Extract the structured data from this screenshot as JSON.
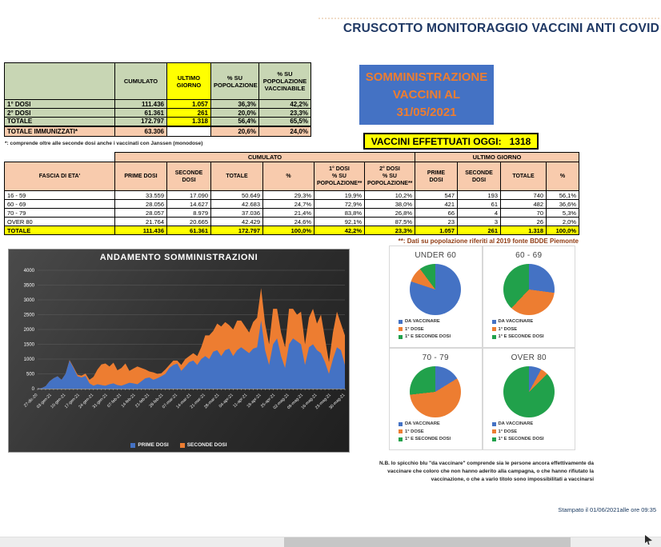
{
  "header": {
    "title": "CRUSCOTTO MONITORAGGIO VACCINI  ANTI COVID"
  },
  "info_box": {
    "line1": "SOMMINISTRAZIONE",
    "line2": "VACCINI AL",
    "line3": "31/05/2021"
  },
  "today_box": {
    "label": "VACCINI EFFETTUATI OGGI:",
    "value": "1318"
  },
  "colors": {
    "blue": "#4472C4",
    "orange": "#ED7D31",
    "green": "#21A14B",
    "table_green": "#C8D6B4",
    "salmon": "#F8CBAD",
    "yellow": "#FFFF00",
    "navy": "#1F3864"
  },
  "summary_table": {
    "col_headers": [
      "",
      "CUMULATO",
      "ULTIMO\nGIORNO",
      "% SU\nPOPOLAZIONE",
      "% SU\nPOPOLAZIONE\nVACCINABILE"
    ],
    "rows": [
      {
        "label": "1° DOSI",
        "cumulato": "111.436",
        "ultimo": "1.057",
        "pop": "36,3%",
        "vacc": "42,2%"
      },
      {
        "label": "2° DOSI",
        "cumulato": "61.361",
        "ultimo": "261",
        "pop": "20,0%",
        "vacc": "23,3%"
      },
      {
        "label": "TOTALE",
        "cumulato": "172.797",
        "ultimo": "1.318",
        "pop": "56,4%",
        "vacc": "65,5%"
      }
    ],
    "immunized_row": {
      "label": "TOTALE IMMUNIZZATI*",
      "cumulato": "63.306",
      "ultimo": "",
      "pop": "20,6%",
      "vacc": "24,0%"
    }
  },
  "age_table": {
    "corner_label": "FASCIA DI ETA'",
    "group_headers": [
      "CUMULATO",
      "ULTIMO GIORNO"
    ],
    "sub_headers": [
      "PRIME DOSI",
      "SECONDE DOSI",
      "TOTALE",
      "%",
      "1° DOSI\n% SU\nPOPOLAZIONE**",
      "2° DOSI\n% SU\nPOPOLAZIONE**",
      "PRIME\nDOSI",
      "SECONDE\nDOSI",
      "TOTALE",
      "%"
    ],
    "rows": [
      [
        "16 - 59",
        "33.559",
        "17.090",
        "50.649",
        "29,3%",
        "19,9%",
        "10,2%",
        "547",
        "193",
        "740",
        "56,1%"
      ],
      [
        "60 - 69",
        "28.056",
        "14.627",
        "42.683",
        "24,7%",
        "72,9%",
        "38,0%",
        "421",
        "61",
        "482",
        "36,6%"
      ],
      [
        "70 - 79",
        "28.057",
        "8.979",
        "37.036",
        "21,4%",
        "83,8%",
        "26,8%",
        "66",
        "4",
        "70",
        "5,3%"
      ],
      [
        "OVER 80",
        "21.764",
        "20.665",
        "42.429",
        "24,6%",
        "92,1%",
        "87,5%",
        "23",
        "3",
        "26",
        "2,0%"
      ]
    ],
    "total_row": [
      "TOTALE",
      "111.436",
      "61.361",
      "172.797",
      "100,0%",
      "42,2%",
      "23,3%",
      "1.057",
      "261",
      "1.318",
      "100,0%"
    ]
  },
  "chart_data": [
    {
      "type": "area",
      "title": "ANDAMENTO SOMMINISTRAZIONI",
      "stacked": true,
      "grid": true,
      "background": "dark",
      "legend_position": "bottom",
      "ylim": [
        0,
        4000
      ],
      "yticks": [
        0,
        500,
        1000,
        1500,
        2000,
        2500,
        3000,
        3500,
        4000
      ],
      "x_labels": [
        "27-dic-20",
        "03-gen-21",
        "10-gen-21",
        "17-gen-21",
        "24-gen-21",
        "31-gen-21",
        "07-feb-21",
        "14-feb-21",
        "21-feb-21",
        "28-feb-21",
        "07-mar-21",
        "14-mar-21",
        "21-mar-21",
        "28-mar-21",
        "04-apr-21",
        "11-apr-21",
        "18-apr-21",
        "25-apr-21",
        "02-mag-21",
        "09-mag-21",
        "16-mag-21",
        "23-mag-21",
        "30-mag-21"
      ],
      "series": [
        {
          "name": "PRIME DOSI",
          "color": "#4472C4",
          "values": [
            0,
            20,
            80,
            250,
            350,
            420,
            300,
            500,
            950,
            700,
            420,
            380,
            430,
            180,
            100,
            150,
            120,
            100,
            150,
            180,
            120,
            100,
            150,
            200,
            180,
            150,
            250,
            350,
            380,
            300,
            350,
            420,
            500,
            700,
            800,
            850,
            600,
            750,
            900,
            950,
            800,
            1000,
            1100,
            1000,
            1250,
            1300,
            1100,
            1300,
            1350,
            1100,
            1300,
            1400,
            1300,
            1200,
            1350,
            1400,
            2300,
            1300,
            800,
            1500,
            1700,
            1100,
            700,
            1500,
            1700,
            1600,
            1500,
            800,
            1400,
            1500,
            1300,
            1200,
            900,
            500,
            1000,
            1400,
            1300,
            800
          ]
        },
        {
          "name": "SECONDE DOSI",
          "color": "#ED7D31",
          "values": [
            0,
            0,
            0,
            0,
            0,
            0,
            0,
            0,
            20,
            30,
            50,
            60,
            80,
            120,
            300,
            500,
            700,
            750,
            600,
            700,
            500,
            600,
            700,
            400,
            500,
            600,
            450,
            300,
            200,
            250,
            150,
            100,
            150,
            100,
            150,
            100,
            200,
            250,
            200,
            250,
            300,
            400,
            700,
            800,
            700,
            900,
            1000,
            950,
            800,
            900,
            1000,
            900,
            800,
            700,
            900,
            1000,
            1100,
            900,
            700,
            1200,
            1000,
            800,
            700,
            1200,
            1000,
            900,
            1100,
            700,
            1000,
            1200,
            900,
            1300,
            800,
            400,
            900,
            1200,
            900,
            1000
          ]
        }
      ]
    },
    {
      "type": "pie",
      "title": "UNDER 60",
      "labels": [
        "DA VACCINARE",
        "1° DOSE",
        "1° E SECONDE DOSI"
      ],
      "values": [
        80.1,
        9.7,
        10.2
      ],
      "colors": [
        "#4472C4",
        "#ED7D31",
        "#21A14B"
      ]
    },
    {
      "type": "pie",
      "title": "60 - 69",
      "labels": [
        "DA VACCINARE",
        "1° DOSE",
        "1° E SECONDE DOSI"
      ],
      "values": [
        27.1,
        34.9,
        38.0
      ],
      "colors": [
        "#4472C4",
        "#ED7D31",
        "#21A14B"
      ]
    },
    {
      "type": "pie",
      "title": "70 - 79",
      "labels": [
        "DA VACCINARE",
        "1° DOSE",
        "1° E SECONDE DOSI"
      ],
      "values": [
        16.2,
        57.0,
        26.8
      ],
      "colors": [
        "#4472C4",
        "#ED7D31",
        "#21A14B"
      ]
    },
    {
      "type": "pie",
      "title": "OVER 80",
      "labels": [
        "DA VACCINARE",
        "1° DOSE",
        "1° E SECONDE DOSI"
      ],
      "values": [
        7.9,
        4.6,
        87.5
      ],
      "colors": [
        "#4472C4",
        "#ED7D31",
        "#21A14B"
      ]
    }
  ],
  "notes": {
    "summary_footnote": "*: comprende oltre alle seconde dosi anche i vaccinati con Janssen (monodose)",
    "age_footnote": "**: Dati su popolazione riferiti al 2019 fonte BDDE Piemonte",
    "nb": "N.B. lo spicchio blu \"da vaccinare\" comprende sia le persone ancora effettivamente da vaccinare che coloro che non hanno aderito alla campagna, o che hanno rifiutato la vaccinazione, o che a vario titolo sono impossibilitati a vaccinarsi",
    "printed": "Stampato il 01/06/2021alle ore 09:35"
  }
}
